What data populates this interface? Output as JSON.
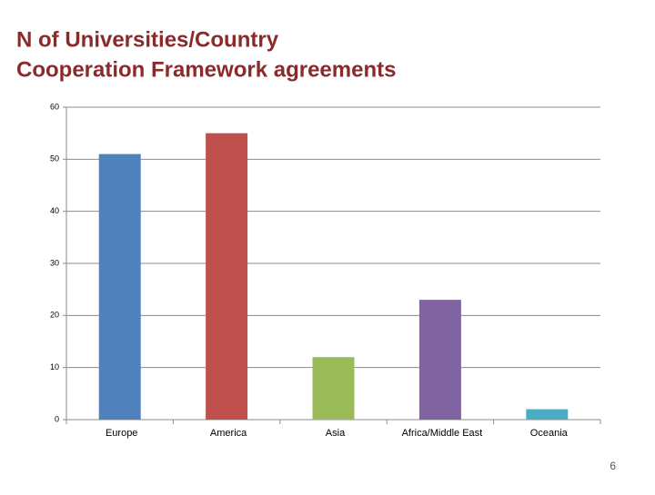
{
  "chart_data": {
    "type": "bar",
    "title": "N of Universities/Country",
    "subtitle": "Cooperation Framework agreements",
    "categories": [
      "Europe",
      "America",
      "Asia",
      "Africa/Middle East",
      "Oceania"
    ],
    "values": [
      51,
      55,
      12,
      23,
      2
    ],
    "colors": [
      "#4f81bd",
      "#c0504d",
      "#9bbb59",
      "#8064a2",
      "#4bacc6"
    ],
    "ylim": [
      0,
      60
    ],
    "yticks": [
      0,
      10,
      20,
      30,
      40,
      50,
      60
    ],
    "grid": true
  },
  "slide_number": 6
}
